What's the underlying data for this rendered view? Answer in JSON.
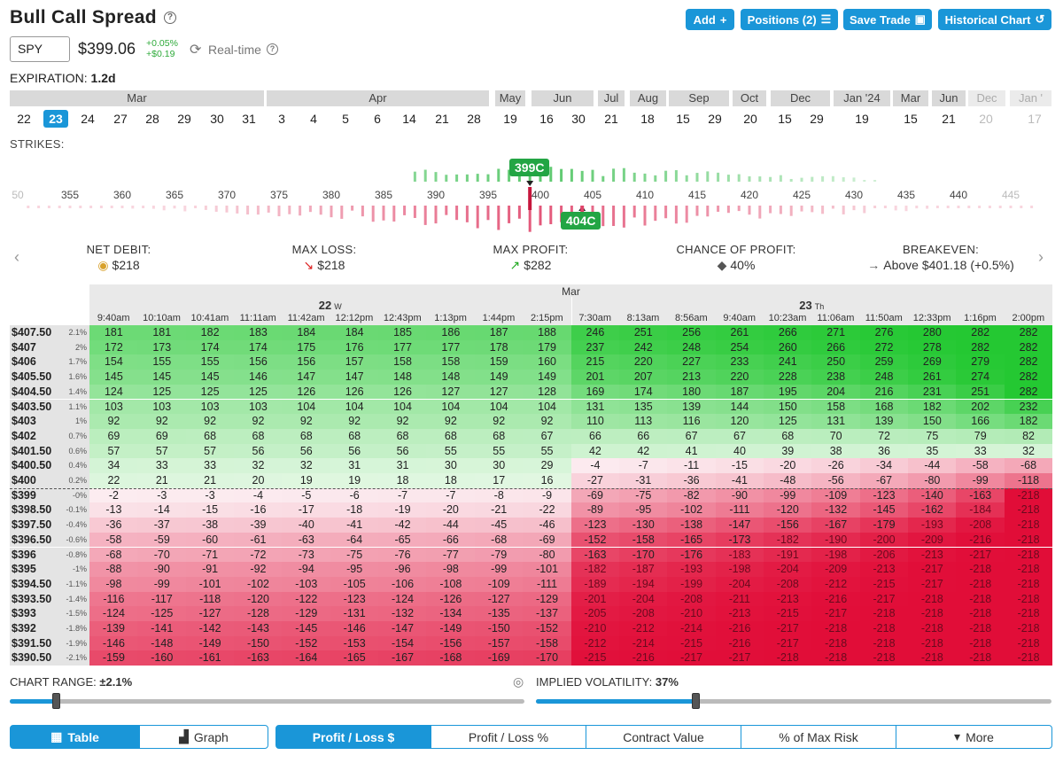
{
  "header": {
    "title": "Bull Call Spread",
    "buttons": [
      "Add",
      "Positions (2)",
      "Save Trade",
      "Historical Chart"
    ],
    "button_icons": [
      "plus-icon",
      "list-icon",
      "save-icon",
      "history-icon"
    ]
  },
  "quote": {
    "symbol": "SPY",
    "price": "$399.06",
    "change_pct": "+0.05%",
    "change_abs": "+$0.19",
    "mode": "Real-time"
  },
  "expiration": {
    "label": "EXPIRATION:",
    "value": "1.2d"
  },
  "months": [
    {
      "label": "Mar"
    },
    {
      "label": "Apr"
    },
    {
      "label": "May"
    },
    {
      "label": "Jun"
    },
    {
      "label": "Jul"
    },
    {
      "label": "Aug"
    },
    {
      "label": "Sep"
    },
    {
      "label": "Oct"
    },
    {
      "label": "Dec"
    },
    {
      "label": "Jan '24"
    },
    {
      "label": "Mar"
    },
    {
      "label": "Jun"
    },
    {
      "label": "Dec"
    },
    {
      "label": "Jan '"
    }
  ],
  "days": [
    "22",
    "23",
    "24",
    "27",
    "28",
    "29",
    "30",
    "31",
    "3",
    "4",
    "5",
    "6",
    "14",
    "21",
    "28",
    "19",
    "16",
    "30",
    "21",
    "18",
    "15",
    "29",
    "20",
    "15",
    "29",
    "19",
    "15",
    "21",
    "20",
    "17"
  ],
  "selected_day": "23",
  "strikes_label": "STRIKES:",
  "strike_axis": [
    "50",
    "355",
    "360",
    "365",
    "370",
    "375",
    "380",
    "385",
    "390",
    "395",
    "400",
    "405",
    "410",
    "415",
    "420",
    "425",
    "430",
    "435",
    "440",
    "445"
  ],
  "legs": [
    {
      "label": "399C",
      "strike": 399
    },
    {
      "label": "404C",
      "strike": 404
    }
  ],
  "stats": [
    {
      "label": "NET DEBIT:",
      "icon": "coins-icon",
      "value": "$218"
    },
    {
      "label": "MAX LOSS:",
      "icon": "trend-down-icon",
      "value": "$218"
    },
    {
      "label": "MAX PROFIT:",
      "icon": "trend-up-icon",
      "value": "$282"
    },
    {
      "label": "CHANCE OF PROFIT:",
      "icon": "dice-icon",
      "value": "40%"
    },
    {
      "label": "BREAKEVEN:",
      "icon": "arrow-right-icon",
      "value": "Above $401.18 (+0.5%)"
    }
  ],
  "table": {
    "month": "Mar",
    "day_groups": [
      {
        "day": "22",
        "weekday": "W",
        "count": 10
      },
      {
        "day": "23",
        "weekday": "Th",
        "count": 10
      }
    ],
    "times": [
      "9:40am",
      "10:10am",
      "10:41am",
      "11:11am",
      "11:42am",
      "12:12pm",
      "12:43pm",
      "1:13pm",
      "1:44pm",
      "2:15pm",
      "7:30am",
      "8:13am",
      "8:56am",
      "9:40am",
      "10:23am",
      "11:06am",
      "11:50am",
      "12:33pm",
      "1:16pm",
      "2:00pm"
    ],
    "rows": [
      {
        "price": "$407.50",
        "pct": "2.1%",
        "values": [
          181,
          181,
          182,
          183,
          184,
          184,
          185,
          186,
          187,
          188,
          246,
          251,
          256,
          261,
          266,
          271,
          276,
          280,
          282,
          282
        ]
      },
      {
        "price": "$407",
        "pct": "2%",
        "values": [
          172,
          173,
          174,
          174,
          175,
          176,
          177,
          177,
          178,
          179,
          237,
          242,
          248,
          254,
          260,
          266,
          272,
          278,
          282,
          282
        ]
      },
      {
        "price": "$406",
        "pct": "1.7%",
        "values": [
          154,
          155,
          155,
          156,
          156,
          157,
          158,
          158,
          159,
          160,
          215,
          220,
          227,
          233,
          241,
          250,
          259,
          269,
          279,
          282
        ]
      },
      {
        "price": "$405.50",
        "pct": "1.6%",
        "values": [
          145,
          145,
          145,
          146,
          147,
          147,
          148,
          148,
          149,
          149,
          201,
          207,
          213,
          220,
          228,
          238,
          248,
          261,
          274,
          282
        ]
      },
      {
        "price": "$404.50",
        "pct": "1.4%",
        "values": [
          124,
          125,
          125,
          125,
          126,
          126,
          126,
          127,
          127,
          128,
          169,
          174,
          180,
          187,
          195,
          204,
          216,
          231,
          251,
          282
        ]
      },
      {
        "price": "$403.50",
        "pct": "1.1%",
        "values": [
          103,
          103,
          103,
          103,
          104,
          104,
          104,
          104,
          104,
          104,
          131,
          135,
          139,
          144,
          150,
          158,
          168,
          182,
          202,
          232
        ]
      },
      {
        "price": "$403",
        "pct": "1%",
        "values": [
          92,
          92,
          92,
          92,
          92,
          92,
          92,
          92,
          92,
          92,
          110,
          113,
          116,
          120,
          125,
          131,
          139,
          150,
          166,
          182
        ]
      },
      {
        "price": "$402",
        "pct": "0.7%",
        "values": [
          69,
          69,
          68,
          68,
          68,
          68,
          68,
          68,
          68,
          67,
          66,
          66,
          67,
          67,
          68,
          70,
          72,
          75,
          79,
          82
        ]
      },
      {
        "price": "$401.50",
        "pct": "0.6%",
        "values": [
          57,
          57,
          57,
          56,
          56,
          56,
          56,
          55,
          55,
          55,
          42,
          42,
          41,
          40,
          39,
          38,
          36,
          35,
          33,
          32
        ]
      },
      {
        "price": "$400.50",
        "pct": "0.4%",
        "values": [
          34,
          33,
          33,
          32,
          32,
          31,
          31,
          30,
          30,
          29,
          -4,
          -7,
          -11,
          -15,
          -20,
          -26,
          -34,
          -44,
          -58,
          -68
        ]
      },
      {
        "price": "$400",
        "pct": "0.2%",
        "values": [
          22,
          21,
          21,
          20,
          19,
          19,
          18,
          18,
          17,
          16,
          -27,
          -31,
          -36,
          -41,
          -48,
          -56,
          -67,
          -80,
          -99,
          -118
        ]
      },
      {
        "price": "$399",
        "pct": "-0%",
        "values": [
          -2,
          -3,
          -3,
          -4,
          -5,
          -6,
          -7,
          -7,
          -8,
          -9,
          -69,
          -75,
          -82,
          -90,
          -99,
          -109,
          -123,
          -140,
          -163,
          -218
        ]
      },
      {
        "price": "$398.50",
        "pct": "-0.1%",
        "values": [
          -13,
          -14,
          -15,
          -16,
          -17,
          -18,
          -19,
          -20,
          -21,
          -22,
          -89,
          -95,
          -102,
          -111,
          -120,
          -132,
          -145,
          -162,
          -184,
          -218
        ]
      },
      {
        "price": "$397.50",
        "pct": "-0.4%",
        "values": [
          -36,
          -37,
          -38,
          -39,
          -40,
          -41,
          -42,
          -44,
          -45,
          -46,
          -123,
          -130,
          -138,
          -147,
          -156,
          -167,
          -179,
          -193,
          -208,
          -218
        ]
      },
      {
        "price": "$396.50",
        "pct": "-0.6%",
        "values": [
          -58,
          -59,
          -60,
          -61,
          -63,
          -64,
          -65,
          -66,
          -68,
          -69,
          -152,
          -158,
          -165,
          -173,
          -182,
          -190,
          -200,
          -209,
          -216,
          -218
        ]
      },
      {
        "price": "$396",
        "pct": "-0.8%",
        "values": [
          -68,
          -70,
          -71,
          -72,
          -73,
          -75,
          -76,
          -77,
          -79,
          -80,
          -163,
          -170,
          -176,
          -183,
          -191,
          -198,
          -206,
          -213,
          -217,
          -218
        ]
      },
      {
        "price": "$395",
        "pct": "-1%",
        "values": [
          -88,
          -90,
          -91,
          -92,
          -94,
          -95,
          -96,
          -98,
          -99,
          -101,
          -182,
          -187,
          -193,
          -198,
          -204,
          -209,
          -213,
          -217,
          -218,
          -218
        ]
      },
      {
        "price": "$394.50",
        "pct": "-1.1%",
        "values": [
          -98,
          -99,
          -101,
          -102,
          -103,
          -105,
          -106,
          -108,
          -109,
          -111,
          -189,
          -194,
          -199,
          -204,
          -208,
          -212,
          -215,
          -217,
          -218,
          -218
        ]
      },
      {
        "price": "$393.50",
        "pct": "-1.4%",
        "values": [
          -116,
          -117,
          -118,
          -120,
          -122,
          -123,
          -124,
          -126,
          -127,
          -129,
          -201,
          -204,
          -208,
          -211,
          -213,
          -216,
          -217,
          -218,
          -218,
          -218
        ]
      },
      {
        "price": "$393",
        "pct": "-1.5%",
        "values": [
          -124,
          -125,
          -127,
          -128,
          -129,
          -131,
          -132,
          -134,
          -135,
          -137,
          -205,
          -208,
          -210,
          -213,
          -215,
          -217,
          -218,
          -218,
          -218,
          -218
        ]
      },
      {
        "price": "$392",
        "pct": "-1.8%",
        "values": [
          -139,
          -141,
          -142,
          -143,
          -145,
          -146,
          -147,
          -149,
          -150,
          -152,
          -210,
          -212,
          -214,
          -216,
          -217,
          -218,
          -218,
          -218,
          -218,
          -218
        ]
      },
      {
        "price": "$391.50",
        "pct": "-1.9%",
        "values": [
          -146,
          -148,
          -149,
          -150,
          -152,
          -153,
          -154,
          -156,
          -157,
          -158,
          -212,
          -214,
          -215,
          -216,
          -217,
          -218,
          -218,
          -218,
          -218,
          -218
        ]
      },
      {
        "price": "$390.50",
        "pct": "-2.1%",
        "values": [
          -159,
          -160,
          -161,
          -163,
          -164,
          -165,
          -167,
          -168,
          -169,
          -170,
          -215,
          -216,
          -217,
          -217,
          -218,
          -218,
          -218,
          -218,
          -218,
          -218
        ]
      }
    ]
  },
  "controls": {
    "chart_range_label": "CHART RANGE:",
    "chart_range_value": "±2.1%",
    "chart_range_level": 0.09,
    "iv_label": "IMPLIED VOLATILITY:",
    "iv_value": "37%",
    "iv_level": 0.31
  },
  "view_tabs": [
    "Table",
    "Graph"
  ],
  "metric_tabs": [
    "Profit / Loss $",
    "Profit / Loss %",
    "Contract Value",
    "% of Max Risk",
    "More"
  ],
  "colors": {
    "accent": "#1a96d8",
    "profit": "#23c74a",
    "loss": "#e5173e",
    "tag": "#23a544"
  }
}
